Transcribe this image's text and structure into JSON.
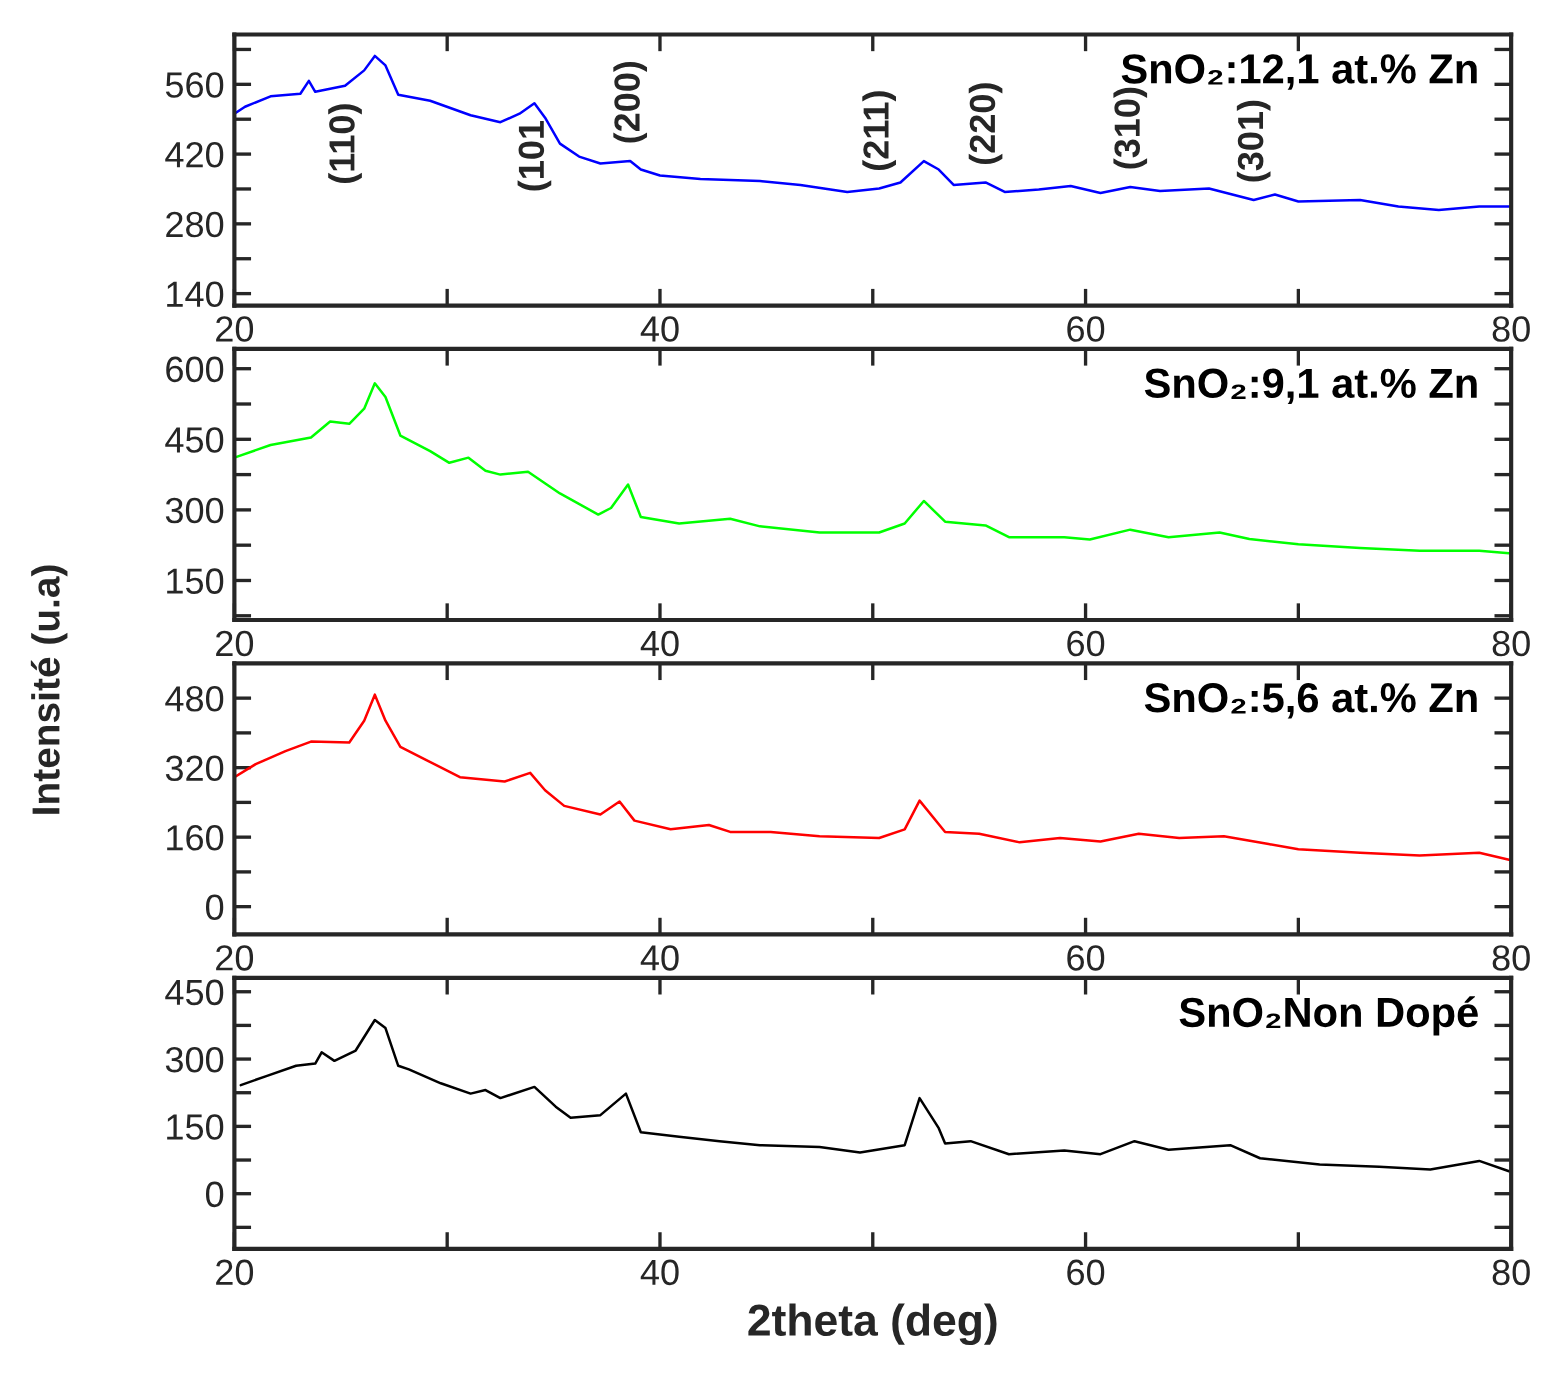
{
  "chart_data": [
    {
      "type": "line",
      "xlim": [
        20,
        80
      ],
      "xticks": [
        20,
        {
          "value": 30,
          "label": null
        },
        40,
        {
          "value": 50,
          "label": null
        },
        60,
        {
          "value": 70,
          "label": null
        },
        80
      ],
      "ylim": [
        116,
        660
      ],
      "yticks": [
        140,
        {
          "value": 210,
          "label": null
        },
        280,
        {
          "value": 350,
          "label": null
        },
        420,
        {
          "value": 490,
          "label": null
        },
        560,
        {
          "value": 630,
          "label": null
        }
      ],
      "grid": false,
      "legend": false,
      "series": [
        {
          "name": "SnO₂:12,1 at.% Zn",
          "color": "#0000ff",
          "x": [
            20,
            20.5,
            21.7,
            23.1,
            23.5,
            23.8,
            25.2,
            26.1,
            26.6,
            27.1,
            27.7,
            29.2,
            31.1,
            32.5,
            33.4,
            34.1,
            34.6,
            35.3,
            36.2,
            37.2,
            38.6,
            39.1,
            40.0,
            41.9,
            44.7,
            46.6,
            48.8,
            50.3,
            51.3,
            52.4,
            53.1,
            53.8,
            55.3,
            56.2,
            57.8,
            59.3,
            60.7,
            62.1,
            63.5,
            65.8,
            67.9,
            68.9,
            70.0,
            72.9,
            74.7,
            76.6,
            78.5,
            79.9
          ],
          "values": [
            501,
            515,
            536,
            541,
            567,
            545,
            557,
            588,
            617,
            598,
            539,
            527,
            498,
            484,
            501,
            522,
            493,
            441,
            415,
            401,
            406,
            389,
            377,
            370,
            366,
            358,
            344,
            351,
            363,
            406,
            389,
            358,
            363,
            344,
            349,
            356,
            342,
            354,
            346,
            351,
            328,
            339,
            325,
            328,
            315,
            308,
            315,
            315
          ]
        }
      ],
      "annotations": [
        {
          "text": "(110)",
          "x": 25.2,
          "y": 557
        },
        {
          "text": "(101",
          "x": 34.1,
          "y": 522
        },
        {
          "text": "(200)",
          "x": 38.6,
          "y": 406
        },
        {
          "text": "(211)",
          "x": 50.3,
          "y": 351
        },
        {
          "text": "(220)",
          "x": 55.3,
          "y": 363
        },
        {
          "text": "(310)",
          "x": 62.1,
          "y": 354
        },
        {
          "text": "(301)",
          "x": 67.9,
          "y": 328
        }
      ]
    },
    {
      "type": "line",
      "xlim": [
        20,
        80
      ],
      "xticks": [
        20,
        {
          "value": 30,
          "label": null
        },
        40,
        {
          "value": 50,
          "label": null
        },
        60,
        {
          "value": 70,
          "label": null
        },
        80
      ],
      "ylim": [
        66,
        642
      ],
      "yticks": [
        {
          "value": 75,
          "label": null
        },
        150,
        {
          "value": 225,
          "label": null
        },
        300,
        {
          "value": 375,
          "label": null
        },
        450,
        {
          "value": 525,
          "label": null
        },
        600
      ],
      "grid": false,
      "legend": false,
      "series": [
        {
          "name": "SnO₂:9,1 at.% Zn",
          "color": "#00ff00",
          "x": [
            20,
            21.7,
            23.6,
            24.5,
            25.4,
            26.1,
            26.6,
            27.1,
            27.8,
            29.2,
            30.1,
            31.0,
            31.8,
            32.5,
            33.8,
            35.3,
            37.1,
            37.7,
            38.5,
            39.1,
            40.9,
            43.3,
            44.7,
            47.5,
            50.3,
            51.5,
            52.4,
            53.4,
            55.3,
            56.4,
            59.0,
            60.2,
            62.1,
            63.9,
            66.3,
            67.7,
            70.0,
            72.9,
            75.7,
            78.5,
            79.9
          ],
          "values": [
            411,
            438,
            454,
            488,
            483,
            515,
            569,
            540,
            458,
            425,
            400,
            411,
            383,
            375,
            381,
            335,
            290,
            304,
            354,
            285,
            271,
            281,
            265,
            252,
            252,
            271,
            319,
            275,
            267,
            242,
            242,
            237,
            258,
            242,
            252,
            238,
            227,
            219,
            213,
            213,
            208
          ]
        }
      ]
    },
    {
      "type": "line",
      "ylabel": "Intensité (u.a)",
      "xlim": [
        20,
        80
      ],
      "xticks": [
        20,
        {
          "value": 30,
          "label": null
        },
        40,
        {
          "value": 50,
          "label": null
        },
        60,
        {
          "value": 70,
          "label": null
        },
        80
      ],
      "ylim": [
        -64,
        560
      ],
      "yticks": [
        0,
        {
          "value": 80,
          "label": null
        },
        160,
        {
          "value": 240,
          "label": null
        },
        320,
        {
          "value": 400,
          "label": null
        },
        480
      ],
      "grid": false,
      "legend": false,
      "series": [
        {
          "name": "SnO₂:5,6 at.% Zn",
          "color": "#ff0000",
          "x": [
            20,
            21,
            22.4,
            23.6,
            25.4,
            26.1,
            26.6,
            27.1,
            27.8,
            29.0,
            30.6,
            32.7,
            33.9,
            34.6,
            35.5,
            37.2,
            38.1,
            38.8,
            40.5,
            42.3,
            43.3,
            45.2,
            47.5,
            50.3,
            51.5,
            52.2,
            53.4,
            55.0,
            56.9,
            58.8,
            60.7,
            62.5,
            64.4,
            66.5,
            68.6,
            70.0,
            72.9,
            75.7,
            78.5,
            79.9
          ],
          "values": [
            298,
            328,
            358,
            380,
            378,
            428,
            488,
            428,
            368,
            338,
            298,
            288,
            308,
            268,
            232,
            212,
            242,
            198,
            178,
            188,
            172,
            172,
            162,
            158,
            178,
            244,
            172,
            168,
            148,
            158,
            150,
            168,
            158,
            162,
            144,
            132,
            124,
            118,
            124,
            108
          ]
        }
      ]
    },
    {
      "type": "line",
      "xlabel": "2theta (deg)",
      "xlim": [
        20,
        80
      ],
      "xticks": [
        20,
        {
          "value": 30,
          "label": null
        },
        40,
        {
          "value": 50,
          "label": null
        },
        60,
        {
          "value": 70,
          "label": null
        },
        80
      ],
      "ylim": [
        -123,
        481
      ],
      "yticks": [
        {
          "value": -75,
          "label": null
        },
        0,
        {
          "value": 75,
          "label": null
        },
        150,
        {
          "value": 225,
          "label": null
        },
        300,
        {
          "value": 375,
          "label": null
        },
        450
      ],
      "grid": false,
      "legend": false,
      "series": [
        {
          "name": "SnO₂Non Dopé",
          "color": "#000000",
          "x": [
            20.3,
            21.5,
            22.9,
            23.8,
            24.1,
            24.7,
            25.7,
            26.6,
            27.1,
            27.7,
            28.2,
            29.7,
            31.1,
            31.8,
            32.5,
            34.1,
            35.1,
            35.8,
            37.2,
            38.4,
            39.1,
            40.9,
            42.8,
            44.7,
            47.5,
            49.4,
            51.5,
            52.2,
            53.1,
            53.4,
            54.6,
            56.4,
            59.0,
            60.7,
            62.3,
            63.9,
            66.8,
            68.2,
            71.0,
            73.8,
            76.2,
            78.5,
            79.9
          ],
          "values": [
            242,
            262,
            285,
            290,
            315,
            296,
            319,
            387,
            369,
            285,
            277,
            246,
            223,
            231,
            213,
            238,
            194,
            169,
            175,
            223,
            137,
            127,
            117,
            108,
            104,
            92,
            108,
            213,
            146,
            112,
            117,
            88,
            96,
            88,
            117,
            98,
            108,
            79,
            65,
            60,
            54,
            73,
            50
          ]
        }
      ]
    }
  ]
}
